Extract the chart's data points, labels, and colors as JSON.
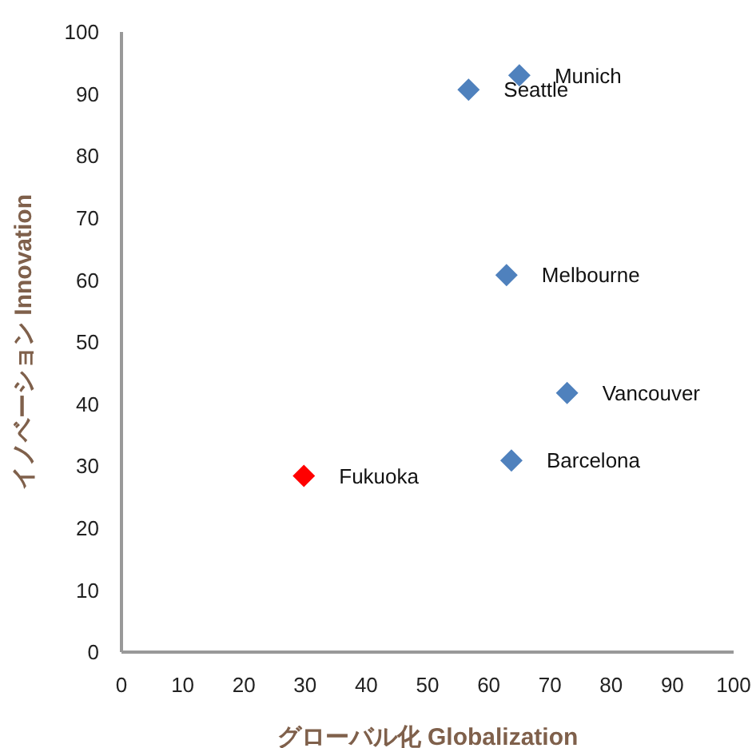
{
  "chart_data": {
    "type": "scatter",
    "xlabel": "グローバル化 Globalization",
    "ylabel": "イノベーション Innovation",
    "x": [
      65,
      56.7,
      62.9,
      72.8,
      63.7,
      29.8
    ],
    "values": [
      93,
      90.7,
      60.8,
      41.8,
      30.9,
      28.4
    ],
    "colors": [
      "#4f81bd",
      "#4f81bd",
      "#4f81bd",
      "#4f81bd",
      "#4f81bd",
      "#ff0000"
    ],
    "marker": "diamond",
    "xlim": [
      0,
      100
    ],
    "xticks": [
      0,
      10,
      20,
      30,
      40,
      50,
      60,
      70,
      80,
      90,
      100
    ],
    "ylim": [
      0,
      100
    ],
    "yticks": [
      0,
      10,
      20,
      30,
      40,
      50,
      60,
      70,
      80,
      90,
      100
    ],
    "annotations": [
      {
        "text": "Munich",
        "x": 65,
        "y": 93
      },
      {
        "text": "Seattle",
        "x": 56.7,
        "y": 90.7
      },
      {
        "text": "Melbourne",
        "x": 62.9,
        "y": 60.8
      },
      {
        "text": "Vancouver",
        "x": 72.8,
        "y": 41.8
      },
      {
        "text": "Barcelona",
        "x": 63.7,
        "y": 30.9
      },
      {
        "text": "Fukuoka",
        "x": 29.8,
        "y": 28.4
      }
    ]
  }
}
